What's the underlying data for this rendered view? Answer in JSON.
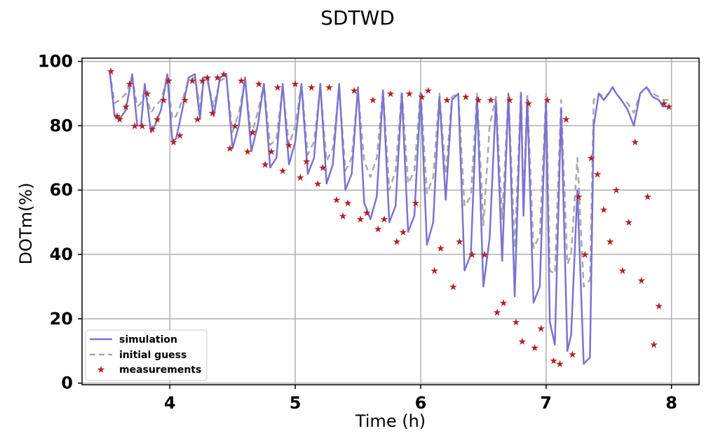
{
  "chart_data": {
    "type": "line",
    "title": "SDTWD",
    "xlabel": "Time (h)",
    "ylabel": "DOTm(%)",
    "xlim": [
      3.3,
      8.22
    ],
    "ylim": [
      -0.5,
      101
    ],
    "xticks": [
      4,
      5,
      6,
      7,
      8
    ],
    "yticks": [
      0,
      20,
      40,
      60,
      80,
      100
    ],
    "grid": true,
    "legend_position": "lower-left",
    "colors": {
      "simulation": "#7b73d0",
      "initial_guess": "#a9a9a9",
      "measurements": "#b22222",
      "grid": "#b0b0b0"
    },
    "series": [
      {
        "name": "simulation",
        "style": "solid",
        "x": [
          3.52,
          3.56,
          3.6,
          3.65,
          3.7,
          3.74,
          3.77,
          3.8,
          3.85,
          3.88,
          3.93,
          3.98,
          4.02,
          4.05,
          4.1,
          4.15,
          4.2,
          4.24,
          4.27,
          4.3,
          4.35,
          4.4,
          4.45,
          4.5,
          4.55,
          4.6,
          4.65,
          4.7,
          4.75,
          4.8,
          4.85,
          4.9,
          4.95,
          5.0,
          5.05,
          5.1,
          5.15,
          5.2,
          5.25,
          5.3,
          5.35,
          5.4,
          5.45,
          5.5,
          5.55,
          5.6,
          5.65,
          5.7,
          5.75,
          5.8,
          5.85,
          5.9,
          5.95,
          6.0,
          6.05,
          6.1,
          6.15,
          6.2,
          6.25,
          6.3,
          6.35,
          6.4,
          6.45,
          6.5,
          6.55,
          6.6,
          6.65,
          6.7,
          6.75,
          6.8,
          6.82,
          6.85,
          6.9,
          6.95,
          7.0,
          7.03,
          7.07,
          7.12,
          7.17,
          7.2,
          7.25,
          7.3,
          7.35,
          7.38,
          7.42,
          7.46,
          7.5,
          7.53,
          7.56,
          7.6,
          7.65,
          7.7,
          7.75,
          7.8,
          7.85,
          7.9,
          7.93,
          7.98
        ],
        "y": [
          97,
          83,
          82,
          85,
          96,
          80,
          80,
          93,
          78,
          80,
          85,
          96,
          75,
          76,
          85,
          95,
          96,
          82,
          95,
          95,
          83,
          95,
          96,
          73,
          80,
          95,
          72,
          80,
          93,
          67,
          70,
          93,
          68,
          75,
          93,
          65,
          70,
          93,
          62,
          68,
          93,
          60,
          65,
          92,
          56,
          51,
          58,
          91,
          50,
          55,
          90,
          47,
          52,
          90,
          43,
          50,
          89,
          57,
          88,
          90,
          35,
          40,
          89,
          30,
          45,
          88,
          38,
          90,
          27,
          90,
          52,
          88,
          25,
          30,
          88,
          19,
          12,
          85,
          10,
          15,
          60,
          6,
          8,
          80,
          90,
          88,
          90,
          92,
          90,
          88,
          85,
          80,
          90,
          92,
          89,
          88,
          86,
          86
        ]
      },
      {
        "name": "initial guess",
        "style": "dashed",
        "x": [
          3.52,
          3.56,
          3.6,
          3.65,
          3.7,
          3.74,
          3.77,
          3.8,
          3.85,
          3.88,
          3.93,
          3.98,
          4.02,
          4.05,
          4.1,
          4.15,
          4.2,
          4.24,
          4.27,
          4.3,
          4.35,
          4.4,
          4.45,
          4.5,
          4.55,
          4.6,
          4.65,
          4.7,
          4.75,
          4.8,
          4.85,
          4.9,
          4.95,
          5.0,
          5.05,
          5.1,
          5.15,
          5.2,
          5.25,
          5.3,
          5.35,
          5.4,
          5.45,
          5.5,
          5.55,
          5.6,
          5.65,
          5.7,
          5.75,
          5.8,
          5.85,
          5.9,
          5.95,
          6.0,
          6.05,
          6.1,
          6.15,
          6.2,
          6.25,
          6.3,
          6.35,
          6.4,
          6.45,
          6.5,
          6.55,
          6.6,
          6.65,
          6.7,
          6.75,
          6.8,
          6.82,
          6.85,
          6.9,
          6.95,
          7.0,
          7.03,
          7.07,
          7.12,
          7.17,
          7.2,
          7.25,
          7.3,
          7.35,
          7.38,
          7.42,
          7.46,
          7.5,
          7.53,
          7.56,
          7.6,
          7.65,
          7.7,
          7.75,
          7.8,
          7.85,
          7.9,
          7.93,
          7.98
        ],
        "y": [
          97,
          87,
          88,
          90,
          95,
          86,
          87,
          91,
          84,
          86,
          88,
          95,
          82,
          83,
          88,
          94,
          95,
          86,
          94,
          94,
          86,
          94,
          95,
          78,
          84,
          94,
          77,
          84,
          93,
          74,
          76,
          92,
          74,
          80,
          93,
          71,
          75,
          92,
          69,
          73,
          92,
          66,
          70,
          91,
          69,
          64,
          70,
          91,
          60,
          66,
          91,
          62,
          66,
          91,
          59,
          64,
          90,
          65,
          89,
          90,
          55,
          58,
          90,
          49,
          80,
          89,
          51,
          90,
          42,
          91,
          56,
          90,
          42,
          46,
          90,
          35,
          34,
          88,
          37,
          40,
          70,
          30,
          32,
          88,
          90,
          89,
          90,
          92,
          90,
          88,
          87,
          84,
          90,
          92,
          90,
          89,
          88,
          88
        ]
      },
      {
        "name": "measurements",
        "style": "marker",
        "x": [
          3.53,
          3.58,
          3.6,
          3.65,
          3.68,
          3.72,
          3.78,
          3.82,
          3.86,
          3.9,
          3.95,
          3.99,
          4.03,
          4.08,
          4.12,
          4.18,
          4.22,
          4.26,
          4.3,
          4.34,
          4.38,
          4.43,
          4.48,
          4.52,
          4.57,
          4.62,
          4.66,
          4.71,
          4.76,
          4.81,
          4.86,
          4.9,
          4.95,
          5.0,
          5.04,
          5.09,
          5.13,
          5.18,
          5.22,
          5.27,
          5.33,
          5.38,
          5.42,
          5.47,
          5.52,
          5.57,
          5.62,
          5.66,
          5.71,
          5.76,
          5.81,
          5.86,
          5.91,
          5.96,
          6.01,
          6.06,
          6.11,
          6.16,
          6.21,
          6.26,
          6.31,
          6.36,
          6.41,
          6.46,
          6.51,
          6.56,
          6.61,
          6.66,
          6.71,
          6.76,
          6.81,
          6.86,
          6.91,
          6.96,
          7.01,
          7.06,
          7.11,
          7.16,
          7.21,
          7.26,
          7.31,
          7.36,
          7.41,
          7.46,
          7.51,
          7.56,
          7.61,
          7.66,
          7.71,
          7.76,
          7.81,
          7.86,
          7.9,
          7.94,
          7.98
        ],
        "y": [
          97,
          83,
          82,
          86,
          93,
          80,
          80,
          90,
          79,
          82,
          88,
          94,
          75,
          77,
          88,
          94,
          82,
          94,
          95,
          84,
          95,
          96,
          73,
          80,
          94,
          72,
          78,
          93,
          68,
          72,
          92,
          66,
          74,
          93,
          64,
          69,
          92,
          62,
          67,
          92,
          57,
          52,
          56,
          91,
          51,
          53,
          88,
          48,
          51,
          90,
          44,
          47,
          90,
          56,
          89,
          91,
          35,
          42,
          88,
          30,
          44,
          89,
          40,
          88,
          40,
          88,
          22,
          25,
          88,
          19,
          13,
          87,
          11,
          17,
          88,
          7,
          6,
          82,
          9,
          58,
          40,
          70,
          65,
          54,
          44,
          60,
          35,
          50,
          75,
          32,
          58,
          12,
          24,
          87,
          86
        ]
      }
    ]
  }
}
